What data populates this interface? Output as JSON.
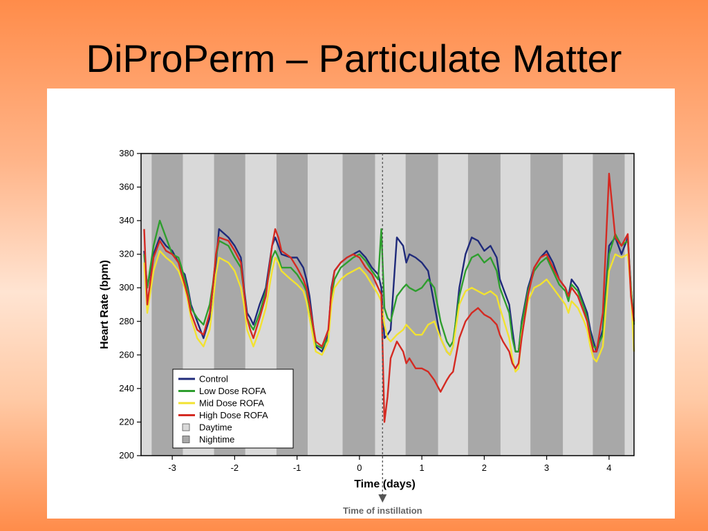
{
  "slide": {
    "title": "DiProPerm – Particulate Matter"
  },
  "chart_data": {
    "type": "line",
    "xlabel": "Time (days)",
    "ylabel": "Heart Rate (bpm)",
    "xlim": [
      -3.5,
      4.4
    ],
    "ylim": [
      200,
      380
    ],
    "xticks": [
      -3,
      -2,
      -1,
      0,
      1,
      2,
      3,
      4
    ],
    "yticks": [
      200,
      220,
      240,
      260,
      280,
      300,
      320,
      340,
      360,
      380
    ],
    "annotation": {
      "label": "Time of instillation",
      "x": 0.37
    },
    "legend": {
      "placement": "bottom-left",
      "entries": [
        "Control",
        "Low Dose ROFA",
        "Mid Dose ROFA",
        "High Dose ROFA",
        "Daytime",
        "Nightime"
      ]
    },
    "background_bands": {
      "daytime_color": "#d9d9d9",
      "nighttime_color": "#a8a8a8",
      "nighttime": [
        [
          -3.33,
          -2.83
        ],
        [
          -2.33,
          -1.83
        ],
        [
          -1.33,
          -0.83
        ],
        [
          -0.27,
          0.25
        ],
        [
          0.74,
          1.26
        ],
        [
          1.74,
          2.26
        ],
        [
          2.74,
          3.26
        ],
        [
          3.74,
          4.25
        ]
      ]
    },
    "series": [
      {
        "name": "Control",
        "color": "#1f2a7a",
        "x": [
          -3.45,
          -3.4,
          -3.3,
          -3.2,
          -3.1,
          -3.0,
          -2.9,
          -2.85,
          -2.8,
          -2.75,
          -2.7,
          -2.6,
          -2.5,
          -2.4,
          -2.35,
          -2.3,
          -2.25,
          -2.1,
          -2.0,
          -1.9,
          -1.85,
          -1.8,
          -1.75,
          -1.7,
          -1.6,
          -1.5,
          -1.4,
          -1.35,
          -1.3,
          -1.25,
          -1.1,
          -1.0,
          -0.9,
          -0.85,
          -0.8,
          -0.7,
          -0.6,
          -0.5,
          -0.45,
          -0.4,
          -0.3,
          -0.2,
          -0.1,
          0.0,
          0.1,
          0.2,
          0.3,
          0.35,
          0.4,
          0.45,
          0.5,
          0.6,
          0.7,
          0.75,
          0.8,
          0.9,
          1.0,
          1.1,
          1.2,
          1.3,
          1.4,
          1.45,
          1.5,
          1.6,
          1.7,
          1.8,
          1.9,
          2.0,
          2.1,
          2.2,
          2.25,
          2.3,
          2.4,
          2.45,
          2.5,
          2.55,
          2.6,
          2.7,
          2.8,
          2.9,
          3.0,
          3.1,
          3.2,
          3.3,
          3.35,
          3.4,
          3.5,
          3.6,
          3.65,
          3.7,
          3.75,
          3.8,
          3.9,
          4.0,
          4.1,
          4.2,
          4.3,
          4.35,
          4.4
        ],
        "y": [
          322,
          300,
          320,
          330,
          325,
          322,
          315,
          310,
          308,
          300,
          290,
          280,
          270,
          282,
          300,
          315,
          335,
          330,
          325,
          318,
          300,
          285,
          282,
          278,
          290,
          300,
          325,
          330,
          325,
          320,
          318,
          318,
          312,
          305,
          295,
          265,
          262,
          272,
          300,
          310,
          315,
          318,
          320,
          322,
          318,
          312,
          308,
          300,
          270,
          272,
          275,
          330,
          325,
          315,
          320,
          318,
          315,
          310,
          290,
          270,
          262,
          260,
          265,
          300,
          320,
          330,
          328,
          322,
          325,
          318,
          305,
          300,
          290,
          275,
          262,
          262,
          280,
          300,
          312,
          318,
          322,
          315,
          305,
          300,
          295,
          305,
          300,
          290,
          285,
          275,
          268,
          262,
          275,
          325,
          330,
          320,
          330,
          300,
          280
        ]
      },
      {
        "name": "Low Dose ROFA",
        "color": "#2e9e2e",
        "x": [
          -3.45,
          -3.4,
          -3.3,
          -3.2,
          -3.1,
          -3.0,
          -2.9,
          -2.85,
          -2.8,
          -2.75,
          -2.7,
          -2.6,
          -2.5,
          -2.4,
          -2.35,
          -2.3,
          -2.25,
          -2.1,
          -2.0,
          -1.9,
          -1.85,
          -1.8,
          -1.75,
          -1.7,
          -1.6,
          -1.5,
          -1.4,
          -1.35,
          -1.3,
          -1.25,
          -1.1,
          -1.0,
          -0.9,
          -0.85,
          -0.8,
          -0.7,
          -0.6,
          -0.5,
          -0.45,
          -0.4,
          -0.3,
          -0.2,
          -0.1,
          0.0,
          0.1,
          0.2,
          0.3,
          0.35,
          0.4,
          0.45,
          0.5,
          0.6,
          0.7,
          0.75,
          0.8,
          0.9,
          1.0,
          1.1,
          1.2,
          1.3,
          1.4,
          1.45,
          1.5,
          1.6,
          1.7,
          1.8,
          1.9,
          2.0,
          2.1,
          2.2,
          2.25,
          2.3,
          2.4,
          2.45,
          2.5,
          2.55,
          2.6,
          2.7,
          2.8,
          2.9,
          3.0,
          3.1,
          3.2,
          3.3,
          3.35,
          3.4,
          3.5,
          3.6,
          3.65,
          3.7,
          3.75,
          3.8,
          3.9,
          4.0,
          4.1,
          4.2,
          4.3,
          4.35,
          4.4
        ],
        "y": [
          320,
          300,
          325,
          340,
          330,
          320,
          318,
          312,
          305,
          298,
          288,
          282,
          278,
          290,
          302,
          318,
          328,
          325,
          318,
          312,
          298,
          282,
          278,
          275,
          285,
          298,
          318,
          322,
          318,
          312,
          312,
          308,
          302,
          298,
          288,
          266,
          264,
          270,
          295,
          305,
          312,
          315,
          318,
          320,
          316,
          310,
          305,
          335,
          288,
          282,
          280,
          295,
          300,
          302,
          300,
          298,
          300,
          305,
          300,
          280,
          268,
          265,
          268,
          295,
          310,
          318,
          320,
          315,
          318,
          310,
          300,
          295,
          285,
          270,
          262,
          262,
          278,
          298,
          310,
          315,
          318,
          310,
          302,
          298,
          292,
          302,
          298,
          288,
          282,
          272,
          265,
          264,
          272,
          320,
          332,
          325,
          328,
          300,
          278
        ]
      },
      {
        "name": "Mid Dose ROFA",
        "color": "#f2e230",
        "x": [
          -3.45,
          -3.4,
          -3.3,
          -3.2,
          -3.1,
          -3.0,
          -2.9,
          -2.85,
          -2.8,
          -2.75,
          -2.7,
          -2.6,
          -2.5,
          -2.4,
          -2.35,
          -2.3,
          -2.25,
          -2.1,
          -2.0,
          -1.9,
          -1.85,
          -1.8,
          -1.75,
          -1.7,
          -1.6,
          -1.5,
          -1.4,
          -1.35,
          -1.3,
          -1.25,
          -1.1,
          -1.0,
          -0.9,
          -0.85,
          -0.8,
          -0.7,
          -0.6,
          -0.5,
          -0.45,
          -0.4,
          -0.3,
          -0.2,
          -0.1,
          0.0,
          0.1,
          0.2,
          0.3,
          0.35,
          0.4,
          0.45,
          0.5,
          0.6,
          0.7,
          0.75,
          0.8,
          0.9,
          1.0,
          1.1,
          1.2,
          1.3,
          1.4,
          1.45,
          1.5,
          1.6,
          1.7,
          1.8,
          1.9,
          2.0,
          2.1,
          2.2,
          2.25,
          2.3,
          2.4,
          2.45,
          2.5,
          2.55,
          2.6,
          2.7,
          2.8,
          2.9,
          3.0,
          3.1,
          3.2,
          3.3,
          3.35,
          3.4,
          3.5,
          3.6,
          3.65,
          3.7,
          3.75,
          3.8,
          3.9,
          4.0,
          4.1,
          4.2,
          4.3,
          4.35,
          4.4
        ],
        "y": [
          315,
          285,
          310,
          322,
          318,
          315,
          310,
          305,
          300,
          292,
          282,
          270,
          265,
          275,
          290,
          308,
          318,
          315,
          310,
          300,
          290,
          275,
          270,
          265,
          275,
          288,
          310,
          318,
          315,
          310,
          305,
          302,
          298,
          292,
          282,
          262,
          260,
          268,
          290,
          300,
          305,
          308,
          310,
          312,
          308,
          302,
          296,
          292,
          278,
          270,
          268,
          272,
          275,
          278,
          276,
          272,
          272,
          278,
          280,
          270,
          262,
          260,
          265,
          290,
          298,
          300,
          298,
          296,
          298,
          295,
          288,
          282,
          270,
          258,
          250,
          252,
          272,
          292,
          300,
          302,
          305,
          300,
          295,
          290,
          285,
          292,
          288,
          280,
          275,
          265,
          258,
          256,
          265,
          310,
          320,
          318,
          320,
          298,
          262
        ]
      },
      {
        "name": "High Dose ROFA",
        "color": "#d42a22",
        "x": [
          -3.45,
          -3.4,
          -3.3,
          -3.2,
          -3.1,
          -3.0,
          -2.9,
          -2.85,
          -2.8,
          -2.75,
          -2.7,
          -2.6,
          -2.5,
          -2.4,
          -2.35,
          -2.3,
          -2.25,
          -2.1,
          -2.0,
          -1.9,
          -1.85,
          -1.8,
          -1.75,
          -1.7,
          -1.6,
          -1.5,
          -1.4,
          -1.35,
          -1.3,
          -1.25,
          -1.1,
          -1.0,
          -0.9,
          -0.85,
          -0.8,
          -0.7,
          -0.6,
          -0.5,
          -0.45,
          -0.4,
          -0.3,
          -0.2,
          -0.1,
          0.0,
          0.1,
          0.2,
          0.3,
          0.35,
          0.4,
          0.45,
          0.5,
          0.6,
          0.7,
          0.75,
          0.8,
          0.9,
          1.0,
          1.1,
          1.2,
          1.3,
          1.4,
          1.45,
          1.5,
          1.6,
          1.7,
          1.8,
          1.9,
          2.0,
          2.1,
          2.2,
          2.25,
          2.3,
          2.4,
          2.45,
          2.5,
          2.55,
          2.6,
          2.7,
          2.8,
          2.9,
          3.0,
          3.1,
          3.2,
          3.3,
          3.35,
          3.4,
          3.5,
          3.6,
          3.65,
          3.7,
          3.75,
          3.8,
          3.9,
          4.0,
          4.1,
          4.2,
          4.3,
          4.35,
          4.4
        ],
        "y": [
          335,
          290,
          318,
          328,
          322,
          320,
          315,
          308,
          302,
          295,
          285,
          275,
          272,
          285,
          300,
          320,
          330,
          328,
          322,
          315,
          298,
          282,
          275,
          270,
          282,
          295,
          325,
          335,
          330,
          322,
          318,
          312,
          305,
          300,
          290,
          268,
          265,
          275,
          298,
          310,
          315,
          318,
          320,
          318,
          312,
          308,
          300,
          296,
          220,
          235,
          258,
          268,
          262,
          255,
          258,
          252,
          252,
          250,
          245,
          238,
          245,
          248,
          250,
          270,
          280,
          285,
          288,
          284,
          282,
          278,
          272,
          268,
          262,
          255,
          252,
          255,
          270,
          295,
          312,
          318,
          320,
          312,
          305,
          300,
          295,
          300,
          295,
          285,
          280,
          270,
          262,
          262,
          285,
          368,
          330,
          325,
          332,
          295,
          280
        ]
      }
    ]
  }
}
